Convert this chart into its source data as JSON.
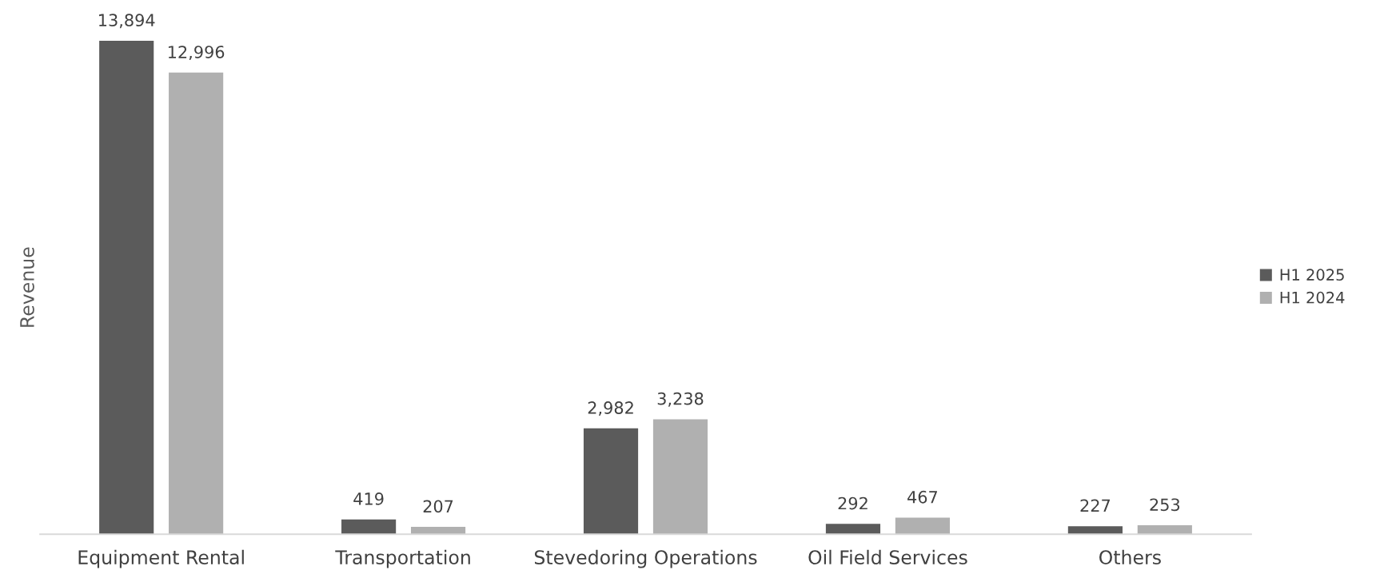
{
  "chart_data": {
    "type": "bar",
    "ylabel": "Revenue",
    "categories": [
      "Equipment Rental",
      "Transportation",
      "Stevedoring Operations",
      "Oil Field Services",
      "Others"
    ],
    "series": [
      {
        "name": "H1 2025",
        "color": "#5b5b5b",
        "values": [
          13894,
          419,
          2982,
          292,
          227
        ],
        "value_labels": [
          "13,894",
          "419",
          "2,982",
          "292",
          "227"
        ]
      },
      {
        "name": "H1 2024",
        "color": "#b0b0b0",
        "values": [
          12996,
          207,
          3238,
          467,
          253
        ],
        "value_labels": [
          "12,996",
          "207",
          "3,238",
          "467",
          "253"
        ]
      }
    ],
    "legend": "right",
    "grid": false
  }
}
